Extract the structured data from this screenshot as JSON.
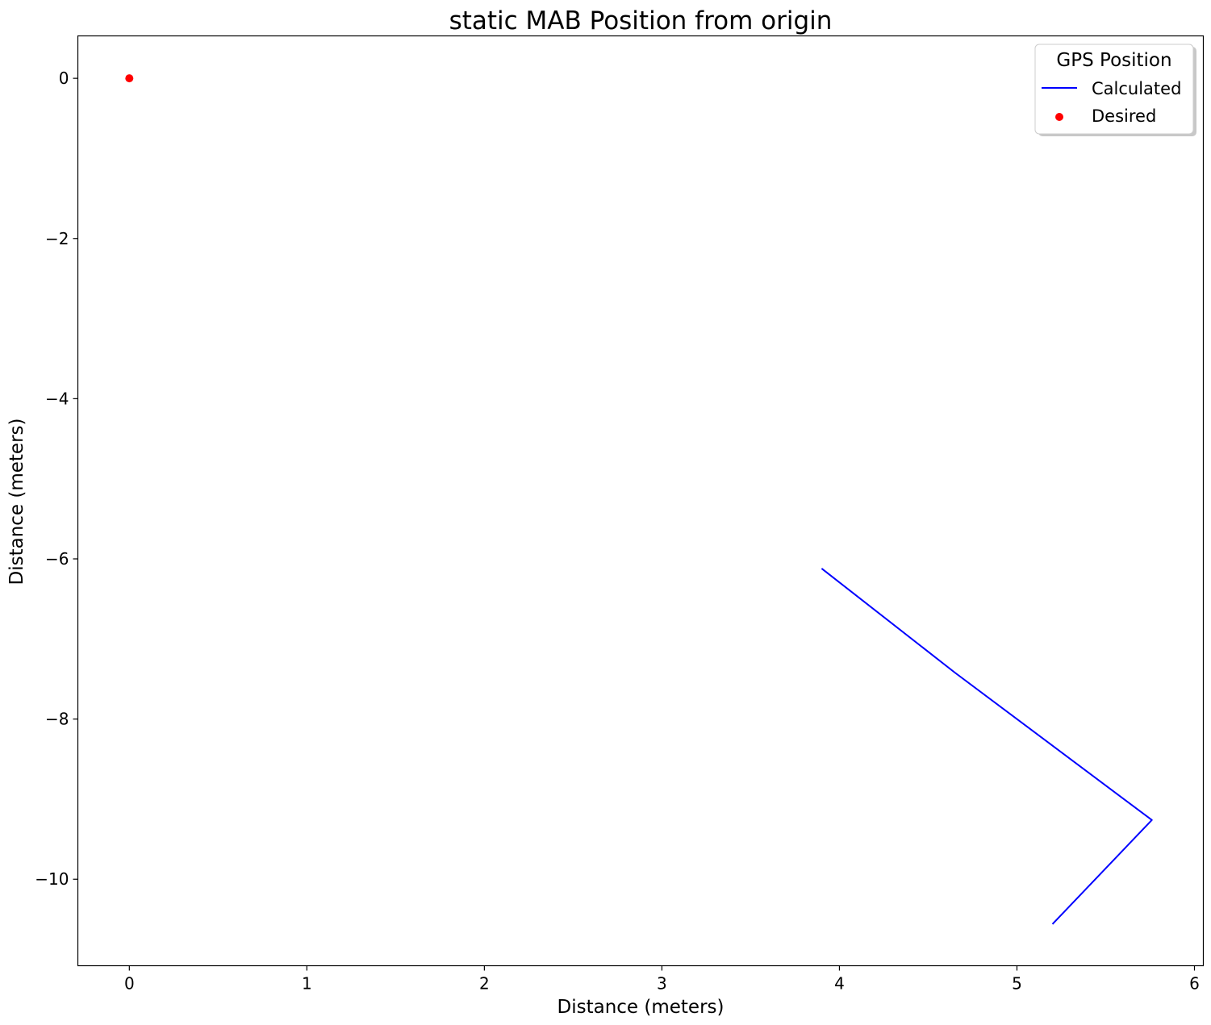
{
  "chart_data": {
    "type": "line",
    "title": "static MAB Position from origin",
    "xlabel": "Distance (meters)",
    "ylabel": "Distance (meters)",
    "xlim": [
      -0.29,
      6.05
    ],
    "ylim": [
      -11.08,
      0.53
    ],
    "xticks": [
      0,
      1,
      2,
      3,
      4,
      5,
      6
    ],
    "xtick_labels": [
      "0",
      "1",
      "2",
      "3",
      "4",
      "5",
      "6"
    ],
    "yticks": [
      0,
      -2,
      -4,
      -6,
      -8,
      -10
    ],
    "ytick_labels": [
      "0",
      "−2",
      "−4",
      "−6",
      "−8",
      "−10"
    ],
    "grid": false,
    "legend": {
      "title": "GPS Position",
      "placement": "top-right"
    },
    "series": [
      {
        "name": "Calculated",
        "kind": "line",
        "color": "#0000ff",
        "x": [
          3.9,
          4.65,
          5.76,
          5.2
        ],
        "y": [
          -6.12,
          -7.42,
          -9.26,
          -10.56
        ]
      },
      {
        "name": "Desired",
        "kind": "scatter",
        "color": "#ff0000",
        "x": [
          0.0
        ],
        "y": [
          0.0
        ]
      }
    ]
  }
}
